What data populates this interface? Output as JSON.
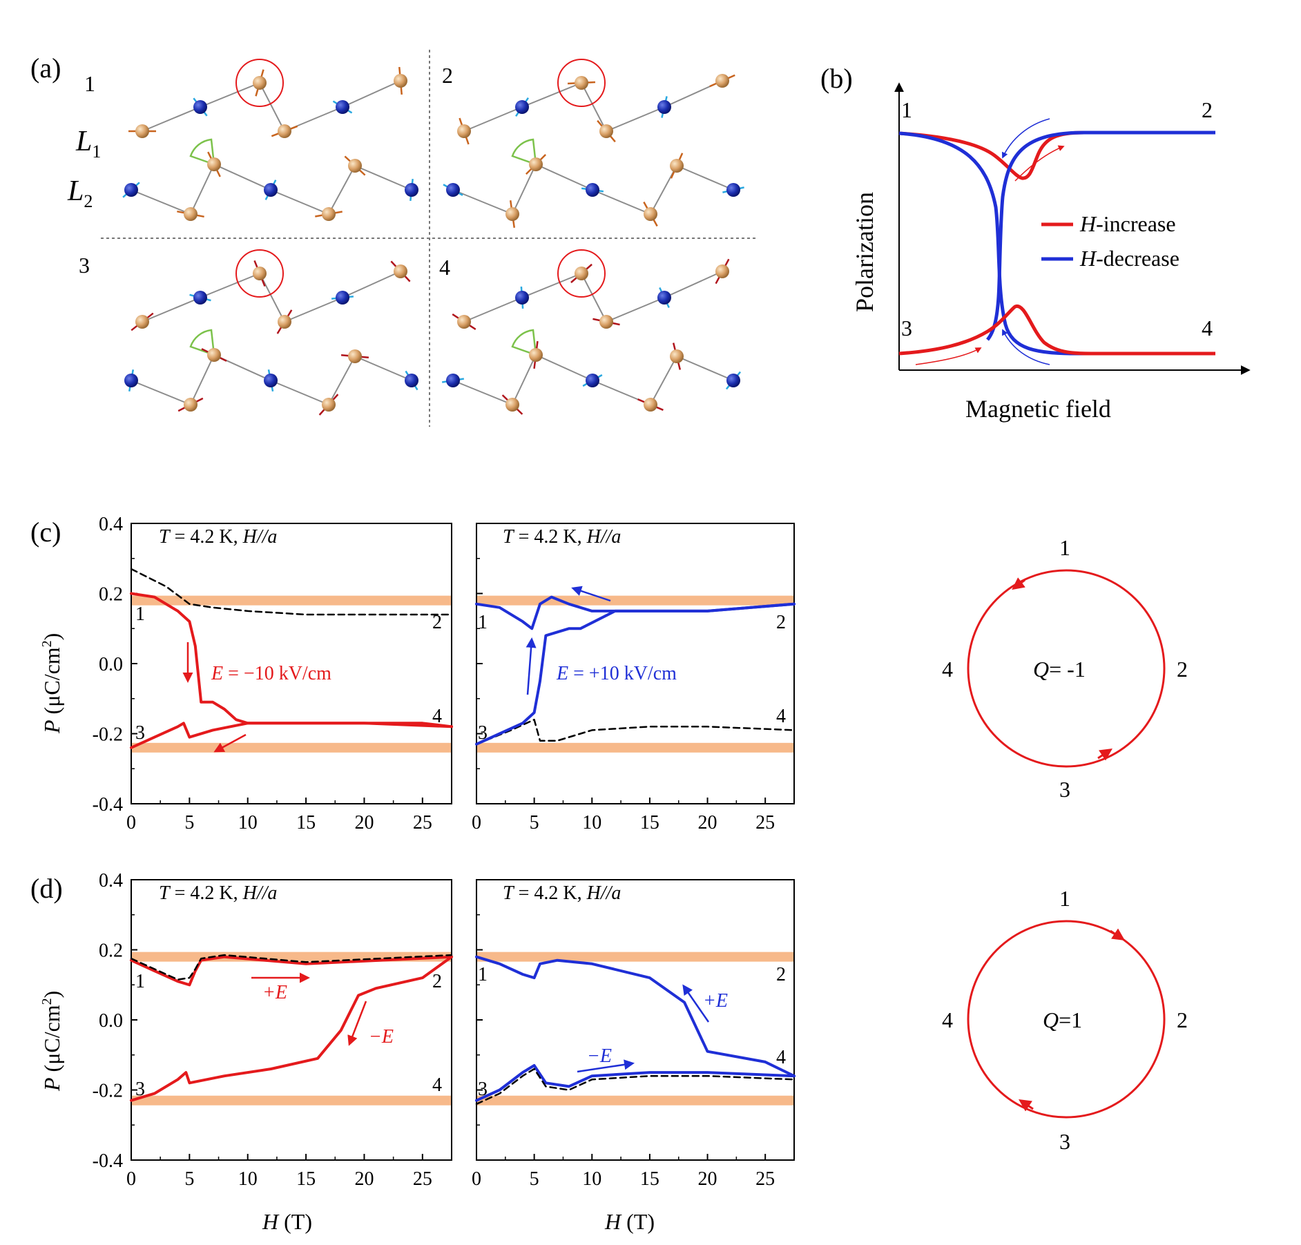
{
  "colors": {
    "red": "#e41a1c",
    "blue": "#1f2fd6",
    "orange_band": "#f7b98a",
    "atom_gold": "#d9a066",
    "atom_blue": "#1c2fb0",
    "spin_cyan": "#29a8e0",
    "spin_orange": "#c8641e",
    "spin_darkred": "#b0141c",
    "bond_gray": "#8c8c8c",
    "wedge_green": "#7cc24b"
  },
  "panel_a": {
    "label": "(a)",
    "quadrants": [
      "1",
      "2",
      "3",
      "4"
    ],
    "layer1": "L",
    "layer1_sub": "1",
    "layer2": "L",
    "layer2_sub": "2"
  },
  "panel_b": {
    "label": "(b)",
    "ylabel": "Polarization",
    "xlabel": "Magnetic field",
    "corners": [
      "1",
      "2",
      "3",
      "4"
    ],
    "legend": [
      {
        "italic": "H",
        "text": "-increase",
        "color": "#e41a1c"
      },
      {
        "italic": "H",
        "text": "-decrease",
        "color": "#1f2fd6"
      }
    ]
  },
  "panel_c": {
    "label": "(c)",
    "left": {
      "annotation_T": "T",
      "annotation_rest": " = 4.2 K, ",
      "annotation_H": "H//a",
      "field_label_E": "E",
      "field_label_rest": " = −10 kV/cm",
      "corners": [
        "1",
        "2",
        "3",
        "4"
      ]
    },
    "right": {
      "annotation_T": "T",
      "annotation_rest": " = 4.2 K, ",
      "annotation_H": "H//a",
      "field_label_E": "E",
      "field_label_rest": " = +10 kV/cm",
      "corners": [
        "1",
        "2",
        "3",
        "4"
      ]
    },
    "loop": {
      "charge_label_Q": "Q",
      "charge_label_rest": "= -1",
      "nodes": [
        "1",
        "2",
        "3",
        "4"
      ]
    }
  },
  "panel_d": {
    "label": "(d)",
    "left": {
      "annotation_T": "T",
      "annotation_rest": " = 4.2 K, ",
      "annotation_H": "H//a",
      "plusE": "+E",
      "minusE": "−E",
      "corners": [
        "1",
        "2",
        "3",
        "4"
      ]
    },
    "right": {
      "annotation_T": "T",
      "annotation_rest": " = 4.2 K, ",
      "annotation_H": "H//a",
      "plusE": "+E",
      "minusE": "−E",
      "corners": [
        "1",
        "2",
        "3",
        "4"
      ]
    },
    "loop": {
      "charge_label_Q": "Q",
      "charge_label_rest": "=1",
      "nodes": [
        "1",
        "2",
        "3",
        "4"
      ]
    }
  },
  "axes": {
    "ylabel_P": "P",
    "ylabel_rest": " (μC/cm",
    "ylabel_sup": "2",
    "ylabel_close": ")",
    "xlabel_H": "H",
    "xlabel_rest": " (T)",
    "xticks": [
      "0",
      "5",
      "10",
      "15",
      "20",
      "25"
    ],
    "yticks": [
      "0.4",
      "0.2",
      "0.0",
      "-0.2",
      "-0.4"
    ]
  },
  "chart_data": [
    {
      "type": "line",
      "panel": "(b)",
      "xlabel": "Magnetic field",
      "ylabel": "Polarization",
      "series": [
        {
          "name": "H-increase",
          "x": [
            0,
            0.2,
            0.3,
            0.36,
            0.45,
            0.6,
            1.0
          ],
          "values": [
            1.0,
            0.97,
            0.9,
            0.78,
            0.95,
            1.0,
            1.0
          ]
        },
        {
          "name": "H-decrease",
          "x": [
            1.0,
            0.5,
            0.35,
            0.32,
            0.3,
            0.2,
            0.0
          ],
          "values": [
            1.0,
            1.0,
            0.95,
            0.5,
            0.1,
            0.02,
            0.0
          ]
        }
      ]
    },
    {
      "type": "line",
      "panel": "(c) left",
      "xlim": [
        0,
        27.5
      ],
      "ylim": [
        -0.4,
        0.4
      ],
      "xlabel": "H (T)",
      "ylabel": "P (μC/cm2)",
      "series": [
        {
          "x": [
            0,
            2,
            4,
            5,
            5.5,
            6,
            7,
            8,
            9,
            10,
            15,
            20,
            25,
            27.5
          ],
          "values": [
            0.2,
            0.19,
            0.15,
            0.12,
            0.05,
            -0.11,
            -0.11,
            -0.13,
            -0.16,
            -0.17,
            -0.17,
            -0.17,
            -0.17,
            -0.18
          ]
        },
        {
          "x": [
            27.5,
            20,
            15,
            10,
            7,
            5,
            4.5,
            4,
            2,
            0
          ],
          "values": [
            -0.18,
            -0.17,
            -0.17,
            -0.17,
            -0.19,
            -0.21,
            -0.17,
            -0.18,
            -0.21,
            -0.24
          ]
        },
        {
          "x": [
            0,
            3,
            5,
            7,
            10,
            15,
            20,
            25,
            27.5
          ],
          "values": [
            0.27,
            0.22,
            0.17,
            0.16,
            0.15,
            0.14,
            0.14,
            0.14,
            0.14
          ]
        }
      ]
    },
    {
      "type": "line",
      "panel": "(c) right",
      "xlim": [
        0,
        27.5
      ],
      "ylim": [
        -0.4,
        0.4
      ],
      "series": [
        {
          "x": [
            0,
            2,
            4,
            5,
            5.5,
            6,
            8,
            9,
            12,
            20,
            27.5
          ],
          "values": [
            -0.23,
            -0.2,
            -0.17,
            -0.14,
            -0.05,
            0.08,
            0.1,
            0.1,
            0.15,
            0.15,
            0.17
          ]
        },
        {
          "x": [
            0,
            2,
            4,
            4.8,
            5.5,
            6.5,
            8,
            10,
            20,
            27.5
          ],
          "values": [
            0.17,
            0.16,
            0.12,
            0.1,
            0.17,
            0.19,
            0.17,
            0.15,
            0.15,
            0.17
          ]
        },
        {
          "x": [
            0,
            3,
            5,
            5.5,
            7,
            10,
            15,
            20,
            27.5
          ],
          "values": [
            -0.23,
            -0.19,
            -0.16,
            -0.22,
            -0.22,
            -0.19,
            -0.18,
            -0.18,
            -0.19
          ]
        }
      ]
    },
    {
      "type": "line",
      "panel": "(d) left",
      "xlim": [
        0,
        27.5
      ],
      "ylim": [
        -0.4,
        0.4
      ],
      "series": [
        {
          "x": [
            0,
            2,
            4,
            5,
            5.5,
            6,
            8,
            15,
            27.5
          ],
          "values": [
            0.17,
            0.14,
            0.11,
            0.1,
            0.14,
            0.17,
            0.18,
            0.16,
            0.18
          ]
        },
        {
          "x": [
            0,
            2,
            4,
            4.7,
            5,
            8,
            12,
            16,
            18,
            19.5,
            21,
            25,
            27.5
          ],
          "values": [
            -0.23,
            -0.21,
            -0.17,
            -0.15,
            -0.18,
            -0.16,
            -0.14,
            -0.11,
            -0.03,
            0.07,
            0.09,
            0.12,
            0.18
          ]
        }
      ]
    },
    {
      "type": "line",
      "panel": "(d) right",
      "xlim": [
        0,
        27.5
      ],
      "ylim": [
        -0.4,
        0.4
      ],
      "series": [
        {
          "x": [
            0,
            2,
            4,
            5,
            5.5,
            7,
            10,
            15,
            18,
            20,
            25,
            27.5
          ],
          "values": [
            0.18,
            0.16,
            0.13,
            0.12,
            0.16,
            0.17,
            0.16,
            0.12,
            0.05,
            -0.09,
            -0.12,
            -0.16
          ]
        },
        {
          "x": [
            0,
            2,
            4,
            5,
            6,
            8,
            10,
            15,
            20,
            27.5
          ],
          "values": [
            -0.23,
            -0.2,
            -0.15,
            -0.13,
            -0.18,
            -0.19,
            -0.16,
            -0.15,
            -0.15,
            -0.16
          ]
        }
      ]
    }
  ]
}
